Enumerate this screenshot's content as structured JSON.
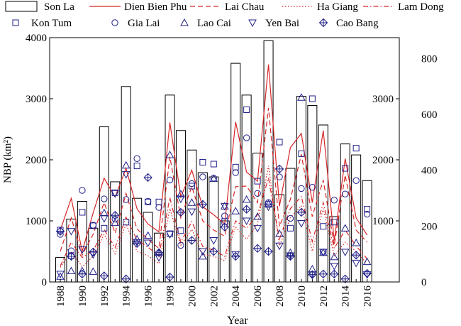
{
  "chart_data": {
    "type": "bar",
    "xlabel": "Year",
    "ylabel": "NBP (km²)",
    "x": [
      1988,
      1989,
      1990,
      1991,
      1992,
      1993,
      1994,
      1995,
      1996,
      1997,
      1998,
      1999,
      2000,
      2001,
      2002,
      2003,
      2004,
      2005,
      2006,
      2007,
      2008,
      2009,
      2010,
      2011,
      2012,
      2013,
      2014,
      2015,
      2016
    ],
    "x_ticks": [
      1988,
      1990,
      1992,
      1994,
      1996,
      1998,
      2000,
      2002,
      2004,
      2006,
      2008,
      2010,
      2012,
      2014,
      2016
    ],
    "axes": {
      "left": {
        "ylim": [
          0,
          4000
        ],
        "ticks": [
          0,
          1000,
          2000,
          3000,
          4000
        ]
      },
      "right_outer": {
        "ylim": [
          0,
          4000
        ],
        "ticks": [
          1000,
          2000,
          3000
        ]
      },
      "right_inner": {
        "ylim": [
          0,
          875
        ],
        "ticks": [
          0,
          200,
          400,
          600,
          800
        ]
      }
    },
    "legend_placement": "top",
    "series": [
      {
        "name": "Son La",
        "style": "bar",
        "axis": "left",
        "values": [
          400,
          1030,
          1320,
          880,
          2540,
          1640,
          3200,
          1370,
          1140,
          800,
          3060,
          2480,
          2160,
          1790,
          1720,
          1000,
          3580,
          3060,
          2110,
          3950,
          1430,
          1860,
          3040,
          2890,
          2570,
          1070,
          2260,
          2080,
          1660
        ]
      },
      {
        "name": "Dien Bien Phu",
        "style": "solid",
        "color": "#d62728",
        "axis": "right_outer",
        "values": [
          850,
          1370,
          500,
          1130,
          1700,
          1390,
          1860,
          1200,
          950,
          820,
          2610,
          1390,
          1830,
          1230,
          1100,
          950,
          2620,
          1800,
          1650,
          3560,
          1240,
          2200,
          2430,
          1300,
          2480,
          680,
          2020,
          1050,
          770
        ]
      },
      {
        "name": "Lai Chau",
        "style": "dashed",
        "color": "#d62728",
        "axis": "right_outer",
        "values": [
          500,
          1050,
          440,
          780,
          1300,
          800,
          1450,
          870,
          700,
          550,
          2050,
          1050,
          1560,
          1000,
          850,
          750,
          1560,
          1570,
          1300,
          2850,
          910,
          1350,
          2090,
          1070,
          1670,
          600,
          1750,
          850,
          650
        ]
      },
      {
        "name": "Ha Giang",
        "style": "dotted",
        "color": "#d62728",
        "axis": "right_outer",
        "values": [
          240,
          500,
          250,
          420,
          780,
          460,
          950,
          500,
          430,
          300,
          1200,
          600,
          860,
          450,
          420,
          350,
          900,
          700,
          950,
          1900,
          590,
          1050,
          1250,
          500,
          1200,
          430,
          650,
          500,
          300
        ]
      },
      {
        "name": "Lam Dong",
        "style": "dashdot",
        "color": "#d62728",
        "axis": "right_outer",
        "values": [
          260,
          650,
          400,
          510,
          860,
          560,
          1060,
          690,
          570,
          430,
          1380,
          650,
          990,
          580,
          520,
          420,
          1000,
          880,
          1100,
          1700,
          700,
          1200,
          1400,
          660,
          1300,
          550,
          850,
          590,
          380
        ]
      },
      {
        "name": "Kon Tum",
        "marker": "square",
        "color": "#1f1f8a",
        "axis": "left",
        "values": [
          850,
          430,
          1140,
          920,
          880,
          1460,
          980,
          1900,
          1310,
          1310,
          790,
          840,
          1570,
          1960,
          1930,
          990,
          1880,
          2820,
          1650,
          1270,
          2290,
          880,
          2100,
          3000,
          910,
          980,
          1860,
          2190,
          1190
        ]
      },
      {
        "name": "Gia Lai",
        "marker": "circle",
        "color": "#1f1f8a",
        "axis": "left",
        "values": [
          780,
          510,
          1500,
          930,
          1360,
          1030,
          1350,
          2020,
          1320,
          1220,
          1670,
          600,
          1610,
          1720,
          1700,
          1080,
          1790,
          2360,
          1450,
          1300,
          1720,
          1040,
          1530,
          1550,
          490,
          1340,
          1440,
          1660,
          1110
        ]
      },
      {
        "name": "Lao Cai",
        "marker": "triangle-up",
        "color": "#1f1f8a",
        "axis": "left",
        "values": [
          90,
          180,
          180,
          170,
          1130,
          970,
          1910,
          700,
          760,
          480,
          2080,
          1440,
          1300,
          420,
          1690,
          1240,
          1160,
          1350,
          1070,
          1280,
          790,
          480,
          3020,
          210,
          480,
          410,
          880,
          640,
          330
        ]
      },
      {
        "name": "Yen Bai",
        "marker": "triangle-down",
        "color": "#1f1f8a",
        "axis": "left",
        "values": [
          130,
          830,
          530,
          450,
          1040,
          1450,
          1760,
          650,
          640,
          400,
          780,
          1360,
          1150,
          500,
          680,
          1240,
          450,
          1000,
          880,
          1230,
          590,
          430,
          960,
          120,
          490,
          260,
          490,
          310,
          120
        ]
      },
      {
        "name": "Cao Bang",
        "marker": "crossed-diamond",
        "color": "#1f1f8a",
        "axis": "left",
        "values": [
          830,
          420,
          130,
          490,
          100,
          1090,
          50,
          630,
          1710,
          480,
          80,
          1140,
          680,
          1270,
          500,
          900,
          420,
          1190,
          550,
          500,
          1850,
          420,
          1140,
          120,
          130,
          130,
          50,
          440,
          140
        ]
      }
    ]
  }
}
